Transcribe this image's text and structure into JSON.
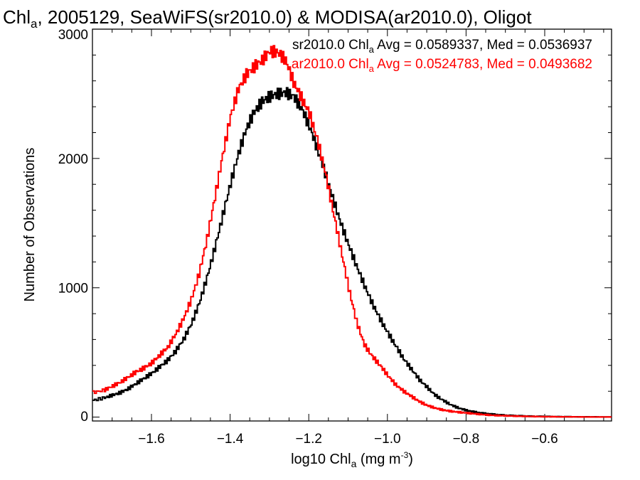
{
  "chart_data": {
    "type": "line",
    "title": {
      "prefix": "Chl",
      "sub": "a",
      "suffix": ", 2005129, SeaWiFS(sr2010.0) & MODISA(ar2010.0), Oligot"
    },
    "xlabel": {
      "prefix": "log10 Chl",
      "sub": "a",
      "mid": " (mg m",
      "sup": "-3",
      "suffix": ")"
    },
    "ylabel": "Number of Observations",
    "xlim": [
      -1.75,
      -0.43
    ],
    "ylim": [
      -30,
      3000
    ],
    "xticks": [
      -1.6,
      -1.4,
      -1.2,
      -1.0,
      -0.8,
      -0.6
    ],
    "xtick_labels": [
      "−1.6",
      "−1.4",
      "−1.2",
      "−1.0",
      "−0.8",
      "−0.6"
    ],
    "yticks": [
      0,
      1000,
      2000,
      3000
    ],
    "ytick_labels": [
      "0",
      "1000",
      "2000",
      "3000"
    ],
    "grid": false,
    "legend_position": "top-right",
    "series": [
      {
        "legend": {
          "prefix": "sr2010.0 Chl",
          "sub": "a",
          "suffix": " Avg = 0.0589337, Med = 0.0536937"
        },
        "color": "#000000",
        "style": "step",
        "x": [
          -1.75,
          -1.72,
          -1.7,
          -1.68,
          -1.66,
          -1.64,
          -1.62,
          -1.6,
          -1.58,
          -1.56,
          -1.54,
          -1.52,
          -1.5,
          -1.48,
          -1.46,
          -1.44,
          -1.42,
          -1.4,
          -1.38,
          -1.36,
          -1.34,
          -1.32,
          -1.3,
          -1.28,
          -1.26,
          -1.24,
          -1.22,
          -1.2,
          -1.18,
          -1.16,
          -1.14,
          -1.12,
          -1.1,
          -1.08,
          -1.06,
          -1.04,
          -1.02,
          -1.0,
          -0.98,
          -0.96,
          -0.94,
          -0.92,
          -0.9,
          -0.88,
          -0.86,
          -0.84,
          -0.82,
          -0.8,
          -0.78,
          -0.76,
          -0.74,
          -0.72,
          -0.7,
          -0.68,
          -0.66,
          -0.64,
          -0.62,
          -0.6,
          -0.58,
          -0.56,
          -0.54,
          -0.52,
          -0.5,
          -0.48,
          -0.46,
          -0.44
        ],
        "y": [
          130,
          150,
          170,
          190,
          220,
          260,
          300,
          340,
          390,
          440,
          510,
          600,
          720,
          880,
          1080,
          1310,
          1560,
          1810,
          2040,
          2230,
          2360,
          2440,
          2480,
          2500,
          2510,
          2480,
          2390,
          2250,
          2080,
          1890,
          1690,
          1500,
          1330,
          1170,
          1020,
          880,
          760,
          650,
          550,
          450,
          370,
          290,
          230,
          170,
          130,
          95,
          70,
          52,
          40,
          30,
          24,
          18,
          14,
          11,
          9,
          7,
          6,
          5,
          4,
          3,
          3,
          2,
          2,
          2,
          1,
          1
        ]
      },
      {
        "legend": {
          "prefix": "ar2010.0 Chl",
          "sub": "a",
          "suffix": " Avg = 0.0524783, Med = 0.0493682"
        },
        "color": "#ff0000",
        "style": "step",
        "x": [
          -1.75,
          -1.72,
          -1.7,
          -1.68,
          -1.66,
          -1.64,
          -1.62,
          -1.6,
          -1.58,
          -1.56,
          -1.54,
          -1.52,
          -1.5,
          -1.48,
          -1.46,
          -1.44,
          -1.42,
          -1.4,
          -1.38,
          -1.36,
          -1.34,
          -1.32,
          -1.3,
          -1.28,
          -1.26,
          -1.24,
          -1.22,
          -1.2,
          -1.18,
          -1.16,
          -1.14,
          -1.12,
          -1.1,
          -1.08,
          -1.06,
          -1.04,
          -1.02,
          -1.0,
          -0.98,
          -0.96,
          -0.94,
          -0.92,
          -0.9,
          -0.88,
          -0.86,
          -0.84,
          -0.82,
          -0.8,
          -0.78,
          -0.76,
          -0.74,
          -0.72,
          -0.7,
          -0.68,
          -0.66,
          -0.64,
          -0.62,
          -0.6,
          -0.58,
          -0.56,
          -0.54,
          -0.52,
          -0.5,
          -0.48,
          -0.46,
          -0.44
        ],
        "y": [
          190,
          210,
          240,
          270,
          310,
          350,
          380,
          420,
          480,
          540,
          640,
          760,
          910,
          1110,
          1380,
          1700,
          2030,
          2330,
          2540,
          2650,
          2710,
          2760,
          2830,
          2820,
          2760,
          2590,
          2470,
          2350,
          2150,
          1900,
          1600,
          1300,
          1000,
          740,
          560,
          470,
          400,
          320,
          250,
          200,
          160,
          120,
          90,
          70,
          55,
          45,
          38,
          32,
          26,
          20,
          15,
          12,
          10,
          8,
          6,
          5,
          4,
          3,
          3,
          2,
          2,
          2,
          1,
          1,
          1,
          1
        ]
      }
    ]
  }
}
